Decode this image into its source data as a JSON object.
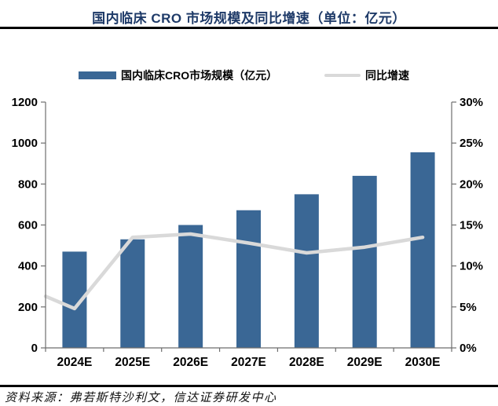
{
  "header": {
    "title": "国内临床 CRO 市场规模及同比增速（单位：亿元）"
  },
  "legend": {
    "items": [
      {
        "label": "国内临床CRO市场规模（亿元）",
        "type": "bar",
        "color": "#3a6795"
      },
      {
        "label": "同比增速",
        "type": "line",
        "color": "#d9d9d9"
      }
    ]
  },
  "footer": {
    "source": "资料来源：弗若斯特沙利文，信达证券研发中心"
  },
  "colors": {
    "bar": "#3a6795",
    "line": "#d9d9d9",
    "axis": "#6e6e6e",
    "tick_text": "#000000",
    "title": "#1e3a68"
  },
  "chart_data": {
    "type": "bar",
    "subtype": "bar+line-combo",
    "title": "国内临床 CRO 市场规模及同比增速（单位：亿元）",
    "categories": [
      "2024E",
      "2025E",
      "2026E",
      "2027E",
      "2028E",
      "2029E",
      "2030E"
    ],
    "series": [
      {
        "name": "国内临床CRO市场规模（亿元）",
        "type": "bar",
        "axis": "left",
        "color": "#3a6795",
        "values": [
          470,
          530,
          600,
          672,
          750,
          840,
          955
        ]
      },
      {
        "name": "同比增速",
        "type": "line",
        "axis": "right",
        "color": "#d9d9d9",
        "values": [
          4.8,
          13.5,
          13.9,
          12.8,
          11.6,
          12.3,
          13.5
        ],
        "edge_start_value": 6.3
      }
    ],
    "left_axis": {
      "min": 0,
      "max": 1200,
      "step": 200,
      "ticks": [
        "0",
        "200",
        "400",
        "600",
        "800",
        "1000",
        "1200"
      ]
    },
    "right_axis": {
      "min": 0,
      "max": 30,
      "step": 5,
      "ticks": [
        "0%",
        "5%",
        "10%",
        "15%",
        "20%",
        "25%",
        "30%"
      ]
    },
    "grid": false,
    "legend_position": "top"
  }
}
